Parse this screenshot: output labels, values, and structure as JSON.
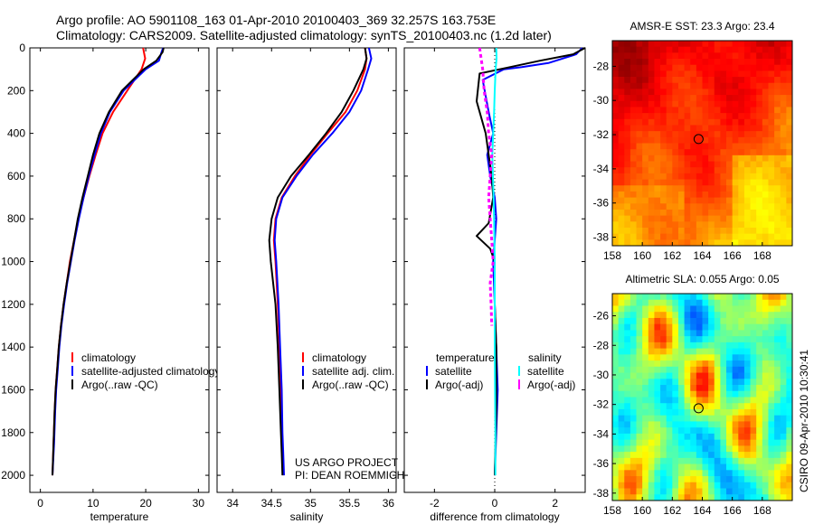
{
  "header": {
    "line1": "Argo profile: AO 5901108_163 01-Apr-2010 20100403_369 32.257S 163.753E",
    "line2": "Climatology: CARS2009. Satellite-adjusted climatology: synTS_20100403.nc (1.2d later)"
  },
  "side_caption": "CSIRO 09-Apr-2010 10:30:41",
  "credit": {
    "line1": "US ARGO PROJECT",
    "line2": "PI: DEAN ROEMMICH"
  },
  "colors": {
    "climatology": "#ff0000",
    "satellite": "#0000ff",
    "argo": "#000000",
    "salinity_satellite": "#00ffff",
    "salinity_argo": "#ff00ff"
  },
  "chart_data": [
    {
      "type": "line",
      "xlabel": "temperature",
      "ylabel": "",
      "xlim": [
        -2,
        32
      ],
      "ylim": [
        2080,
        0
      ],
      "xticks": [
        0,
        10,
        20,
        30
      ],
      "yticks": [
        0,
        200,
        400,
        600,
        800,
        1000,
        1200,
        1400,
        1600,
        1800,
        2000
      ],
      "legend": [
        "climatology",
        "satellite-adjusted climatology",
        "Argo(..raw -QC)"
      ],
      "series": [
        {
          "name": "climatology",
          "color": "#ff0000",
          "x": [
            19.5,
            19.9,
            19.2,
            16.5,
            13.8,
            11.8,
            10.5,
            9.3,
            8.2,
            7.2,
            6.4,
            5.6,
            5.0,
            4.4,
            3.9,
            3.5,
            3.2,
            2.9,
            2.7,
            2.5,
            2.3
          ],
          "y": [
            0,
            50,
            100,
            200,
            300,
            400,
            500,
            600,
            700,
            800,
            900,
            1000,
            1100,
            1200,
            1300,
            1400,
            1500,
            1600,
            1700,
            1850,
            2000
          ]
        },
        {
          "name": "satellite-adjusted climatology",
          "color": "#0000ff",
          "x": [
            23.3,
            23.0,
            22.5,
            20.0,
            15.8,
            13.2,
            11.5,
            10.3,
            9.2,
            8.2,
            7.3,
            6.5,
            5.8,
            5.1,
            4.5,
            4.0,
            3.6,
            3.3,
            3.0,
            2.8,
            2.6,
            2.3
          ],
          "y": [
            0,
            20,
            60,
            100,
            200,
            300,
            400,
            500,
            600,
            700,
            800,
            900,
            1000,
            1100,
            1200,
            1300,
            1400,
            1500,
            1600,
            1700,
            1850,
            2000
          ]
        },
        {
          "name": "Argo(..raw -QC)",
          "color": "#000000",
          "x": [
            23.4,
            23.2,
            22.0,
            19.6,
            15.5,
            13.0,
            11.2,
            10.0,
            9.0,
            8.0,
            7.1,
            6.4,
            5.7,
            5.0,
            4.4,
            3.9,
            3.5,
            3.2,
            2.9,
            2.7,
            2.5,
            2.3
          ],
          "y": [
            0,
            20,
            60,
            100,
            200,
            300,
            400,
            500,
            600,
            700,
            800,
            900,
            1000,
            1100,
            1200,
            1300,
            1400,
            1500,
            1600,
            1700,
            1850,
            2000
          ]
        }
      ]
    },
    {
      "type": "line",
      "xlabel": "salinity",
      "ylabel": "",
      "xlim": [
        33.8,
        36.1
      ],
      "ylim": [
        2080,
        0
      ],
      "xticks": [
        34,
        34.5,
        35,
        35.5,
        36
      ],
      "legend": [
        "climatology",
        "satellite adj. clim.",
        "Argo(..raw -QC)"
      ],
      "series": [
        {
          "name": "climatology",
          "color": "#ff0000",
          "x": [
            35.7,
            35.72,
            35.7,
            35.6,
            35.45,
            35.22,
            35.0,
            34.8,
            34.63,
            34.55,
            34.53,
            34.55,
            34.58,
            34.6,
            34.62,
            34.63,
            34.64,
            34.65
          ],
          "y": [
            0,
            50,
            100,
            200,
            300,
            400,
            500,
            600,
            700,
            800,
            900,
            1000,
            1200,
            1400,
            1600,
            1800,
            1900,
            2000
          ]
        },
        {
          "name": "satellite adj. clim.",
          "color": "#0000ff",
          "x": [
            35.75,
            35.78,
            35.74,
            35.65,
            35.5,
            35.28,
            35.03,
            34.82,
            34.64,
            34.56,
            34.54,
            34.56,
            34.59,
            34.61,
            34.63,
            34.64,
            34.65,
            34.66
          ],
          "y": [
            0,
            50,
            100,
            200,
            300,
            400,
            500,
            600,
            700,
            800,
            900,
            1000,
            1200,
            1400,
            1600,
            1800,
            1900,
            2000
          ]
        },
        {
          "name": "Argo(..raw -QC)",
          "color": "#000000",
          "x": [
            35.7,
            35.72,
            35.68,
            35.55,
            35.4,
            35.2,
            34.98,
            34.75,
            34.58,
            34.5,
            34.47,
            34.49,
            34.55,
            34.58,
            34.6,
            34.62,
            34.63,
            34.64
          ],
          "y": [
            0,
            50,
            100,
            200,
            300,
            400,
            500,
            600,
            700,
            800,
            900,
            1000,
            1200,
            1400,
            1600,
            1800,
            1900,
            2000
          ]
        }
      ]
    },
    {
      "type": "line",
      "xlabel": "difference from climatology",
      "ylabel": "",
      "xlim": [
        -3,
        3
      ],
      "ylim": [
        2080,
        0
      ],
      "xticks": [
        -2,
        0,
        2
      ],
      "legend": [
        "temperature",
        "satellite",
        "Argo(-adj)",
        "salinity",
        "satellite",
        "Argo(-adj)"
      ],
      "series": [
        {
          "name": "satellite",
          "color": "#0000ff",
          "x": [
            2.9,
            2.7,
            1.8,
            0.9,
            0.3,
            -0.4,
            -0.2,
            -0.05,
            -0.25,
            -0.15,
            0.0,
            0.05,
            0.0,
            -0.05,
            0.0,
            0.05,
            0.1,
            0.05,
            0.0
          ],
          "y": [
            0,
            30,
            70,
            90,
            100,
            150,
            300,
            400,
            500,
            600,
            700,
            800,
            900,
            1000,
            1200,
            1400,
            1600,
            1800,
            2000
          ]
        },
        {
          "name": "Argo(-adj)",
          "color": "#000000",
          "x": [
            3.0,
            2.6,
            1.5,
            0.5,
            -0.5,
            -0.6,
            -0.3,
            -0.2,
            -0.1,
            -0.05,
            -0.2,
            -0.6,
            -0.15,
            0.0,
            0.0,
            0.05,
            0.05,
            0.0
          ],
          "y": [
            0,
            30,
            60,
            90,
            120,
            250,
            400,
            500,
            600,
            700,
            820,
            880,
            940,
            1000,
            1200,
            1400,
            1700,
            2000
          ]
        },
        {
          "name": "satellite",
          "color": "#00ffff",
          "x": [
            0.05,
            0.06,
            0.03,
            0.0,
            -0.02,
            -0.05,
            -0.08,
            -0.06,
            -0.04,
            -0.02,
            0.0,
            0.0,
            0.02,
            0.02
          ],
          "y": [
            0,
            50,
            100,
            200,
            300,
            400,
            500,
            600,
            700,
            800,
            1000,
            1400,
            1800,
            2000
          ]
        },
        {
          "name": "Argo(-adj)",
          "color": "#ff00ff",
          "x": [
            -0.5,
            -0.4,
            -0.35,
            -0.25,
            -0.2,
            -0.1,
            -0.15,
            -0.2,
            -0.15,
            -0.1,
            -0.05,
            -0.15,
            -0.12,
            -0.1
          ],
          "y": [
            0,
            100,
            200,
            300,
            400,
            500,
            600,
            700,
            800,
            900,
            1000,
            1100,
            1200,
            1300
          ]
        }
      ]
    },
    {
      "type": "heatmap",
      "title": "AMSR-E SST: 23.3 Argo: 23.4",
      "xlim": [
        158,
        170
      ],
      "ylim": [
        -38.5,
        -26.5
      ],
      "xticks": [
        158,
        160,
        162,
        164,
        166,
        168
      ],
      "yticks": [
        -28,
        -30,
        -32,
        -34,
        -36,
        -38
      ],
      "marker": {
        "lon": 163.753,
        "lat": -32.257
      }
    },
    {
      "type": "heatmap",
      "title": "Altimetric SLA: 0.055 Argo: 0.05",
      "xlim": [
        158,
        170
      ],
      "ylim": [
        -38.5,
        -24.5
      ],
      "xticks": [
        158,
        160,
        162,
        164,
        166,
        168
      ],
      "yticks": [
        -26,
        -28,
        -30,
        -32,
        -34,
        -36,
        -38
      ],
      "marker": {
        "lon": 163.753,
        "lat": -32.257
      }
    }
  ]
}
